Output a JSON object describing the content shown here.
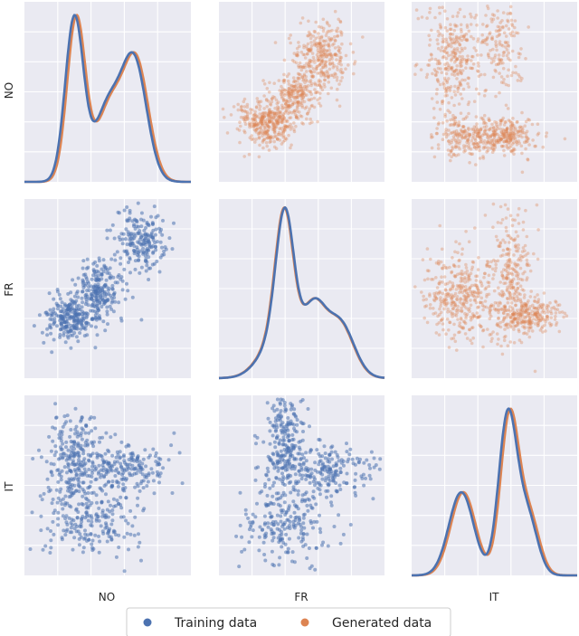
{
  "chart_data": {
    "type": "pairplot",
    "variables": [
      "NO",
      "FR",
      "IT"
    ],
    "diagonal": "kde",
    "off_diagonal": "scatter",
    "upper_triangle_series": "Generated data",
    "lower_triangle_series": "Training data",
    "grid": true,
    "background_color": "#eaeaf2",
    "legend": {
      "placement": "bottom-center",
      "entries": [
        {
          "name": "Training data",
          "color": "#4c72b0"
        },
        {
          "name": "Generated data",
          "color": "#dd8452"
        }
      ]
    },
    "kde": {
      "NO": {
        "peaks": [
          {
            "mu": 0.3,
            "sigma": 0.055,
            "w": 1.0
          },
          {
            "mu": 0.5,
            "sigma": 0.08,
            "w": 0.45
          },
          {
            "mu": 0.66,
            "sigma": 0.075,
            "w": 0.72
          }
        ],
        "ylim": [
          0,
          1.08
        ],
        "generated_shift": 0.012
      },
      "FR": {
        "peaks": [
          {
            "mu": 0.4,
            "sigma": 0.055,
            "w": 1.0
          },
          {
            "mu": 0.34,
            "sigma": 0.1,
            "w": 0.25
          },
          {
            "mu": 0.57,
            "sigma": 0.07,
            "w": 0.48
          },
          {
            "mu": 0.73,
            "sigma": 0.085,
            "w": 0.4
          }
        ],
        "ylim": [
          0,
          1.05
        ],
        "generated_shift": -0.004
      },
      "IT": {
        "peaks": [
          {
            "mu": 0.3,
            "sigma": 0.075,
            "w": 0.5
          },
          {
            "mu": 0.58,
            "sigma": 0.055,
            "w": 0.95
          },
          {
            "mu": 0.7,
            "sigma": 0.06,
            "w": 0.35
          }
        ],
        "ylim": [
          0,
          1.08
        ],
        "generated_shift": 0.012
      }
    }
  }
}
